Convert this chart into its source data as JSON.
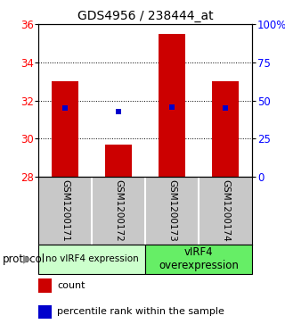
{
  "title": "GDS4956 / 238444_at",
  "samples": [
    "GSM1200171",
    "GSM1200172",
    "GSM1200173",
    "GSM1200174"
  ],
  "bar_bottoms": [
    28,
    28,
    28,
    28
  ],
  "bar_tops": [
    33.0,
    29.7,
    35.5,
    33.0
  ],
  "percentile_values": [
    31.6,
    31.4,
    31.65,
    31.6
  ],
  "ylim": [
    28,
    36
  ],
  "ylim_right": [
    0,
    100
  ],
  "yticks_left": [
    28,
    30,
    32,
    34,
    36
  ],
  "yticks_right": [
    0,
    25,
    50,
    75,
    100
  ],
  "ytick_labels_right": [
    "0",
    "25",
    "50",
    "75",
    "100%"
  ],
  "bar_color": "#CC0000",
  "marker_color": "#0000CC",
  "protocol_labels": [
    "no vIRF4 expression",
    "vIRF4\noverexpression"
  ],
  "protocol_colors": [
    "#ccffcc",
    "#66ee66"
  ],
  "bg_color": "#ffffff",
  "plot_bg": "#ffffff",
  "label_area_bg": "#c8c8c8",
  "bar_width": 0.5,
  "legend_count_label": "count",
  "legend_pct_label": "percentile rank within the sample",
  "protocol_text": "protocol"
}
